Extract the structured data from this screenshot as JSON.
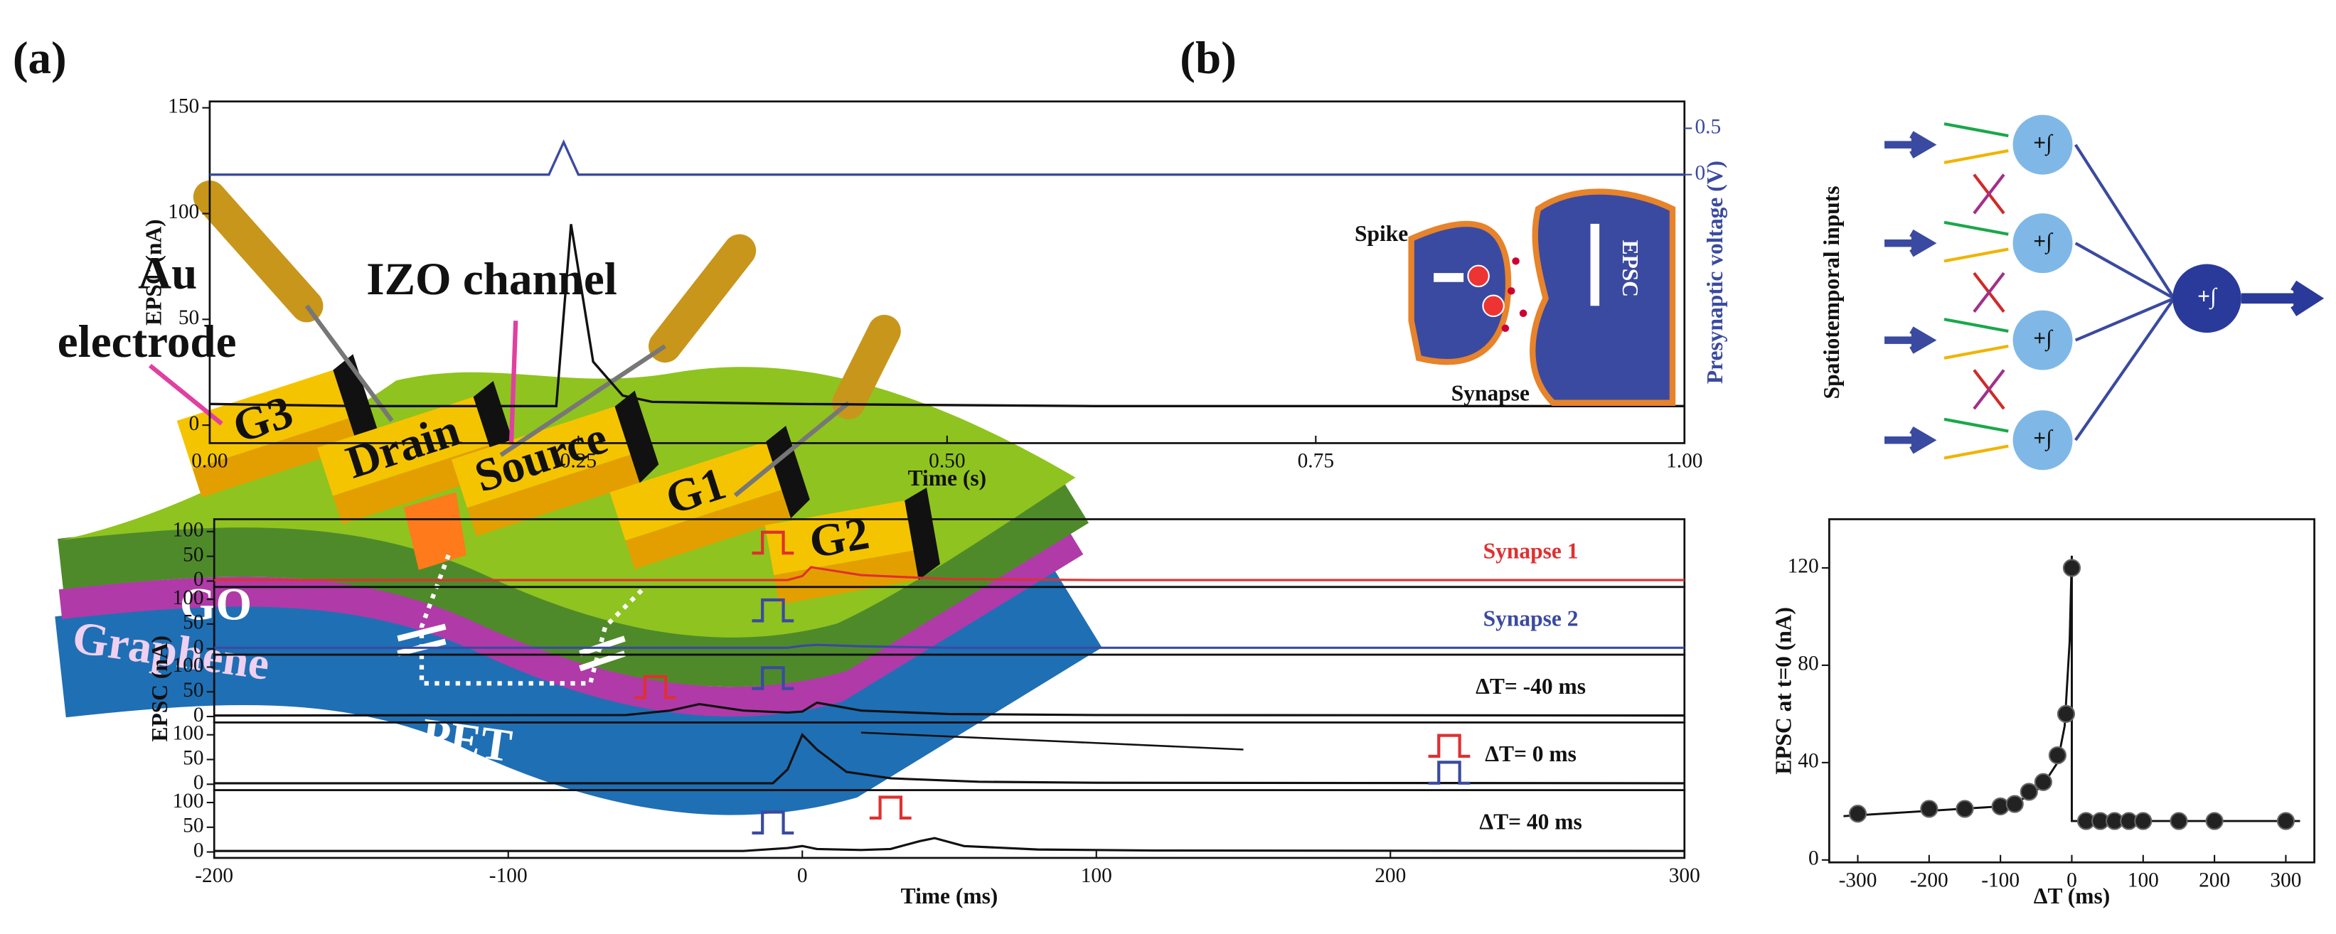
{
  "panel_a": {
    "label": "(a)",
    "labels": {
      "au": "Au",
      "electrode": "electrode",
      "izo": "IZO channel",
      "g3": "G3",
      "drain": "Drain",
      "source": "Source",
      "g1": "G1",
      "g2": "G2",
      "go": "GO",
      "graphene": "Graphene",
      "pet": "PET"
    }
  },
  "panel_b": {
    "label": "(b)",
    "network": {
      "inputs": "Spatiotemporal inputs",
      "neurons": [
        "+∫",
        "+∫",
        "+∫",
        "+∫"
      ],
      "output": "+∫"
    }
  },
  "chart_data": [
    {
      "type": "line",
      "xlabel": "Time (s)",
      "ylabel": "EPSC (nA)",
      "y2label": "Presynaptic voltage (V)",
      "xlim": [
        0,
        1
      ],
      "xticks": [
        {
          "value": 0,
          "label": "0.00"
        },
        {
          "value": 0.25,
          "label": "0.25"
        },
        {
          "value": 0.5,
          "label": "0.50"
        },
        {
          "value": 0.75,
          "label": "0.75"
        },
        {
          "value": 1,
          "label": "1.00"
        }
      ],
      "ylim": [
        -8.5,
        153
      ],
      "yticks": [
        0,
        50,
        100,
        150
      ],
      "y2lim": [
        -2.9,
        0.79
      ],
      "y2ticks": [
        0,
        0.5
      ],
      "annotations": [
        "Spike",
        "Synapse",
        "EPSC"
      ],
      "series": [
        {
          "color": "#111111",
          "x": [
            0,
            0.1,
            0.2,
            0.235,
            0.245,
            0.26,
            0.28,
            0.3,
            0.4,
            0.6,
            0.8,
            1.0
          ],
          "values": [
            10,
            9,
            9,
            9,
            95,
            30,
            14,
            11,
            10,
            9,
            9,
            9
          ]
        },
        {
          "color": "#3a4aa0",
          "axis": "y2",
          "x": [
            0,
            0.23,
            0.24,
            0.25,
            1.0
          ],
          "values": [
            0,
            0,
            0.35,
            0,
            0
          ]
        }
      ]
    },
    {
      "type": "strips",
      "xlabel": "Time (ms)",
      "ylabel": "EPSC (nA)",
      "xlim": [
        -200,
        300
      ],
      "xticks": [
        -200,
        -100,
        0,
        100,
        200,
        300
      ],
      "ylim": [
        -12,
        125
      ],
      "yticks": [
        0,
        50,
        100
      ],
      "series": [
        {
          "name": "Synapse 1",
          "color": "#e03030",
          "x": [
            -200,
            -5,
            0,
            3,
            20,
            50,
            100,
            300
          ],
          "values": [
            2,
            2,
            10,
            28,
            12,
            4,
            2,
            2
          ]
        },
        {
          "name": "Synapse 2",
          "color": "#3a4aa0",
          "x": [
            -200,
            -5,
            0,
            5,
            20,
            50,
            300
          ],
          "values": [
            2,
            2,
            6,
            8,
            5,
            2,
            2
          ]
        },
        {
          "name": "ΔT= -40 ms",
          "color": "#111111",
          "x": [
            -200,
            -60,
            -45,
            -35,
            -20,
            -5,
            0,
            5,
            20,
            50,
            100,
            300
          ],
          "values": [
            2,
            3,
            12,
            25,
            12,
            8,
            10,
            28,
            12,
            5,
            3,
            2
          ]
        },
        {
          "name": "ΔT= 0 ms",
          "color": "#111111",
          "x": [
            -200,
            -10,
            -5,
            0,
            5,
            15,
            30,
            60,
            100,
            300
          ],
          "values": [
            2,
            2,
            30,
            100,
            70,
            25,
            12,
            5,
            3,
            2
          ]
        },
        {
          "name": "ΔT= 40 ms",
          "color": "#111111",
          "x": [
            -200,
            -20,
            -5,
            0,
            5,
            20,
            30,
            40,
            45,
            55,
            80,
            120,
            300
          ],
          "values": [
            2,
            2,
            8,
            12,
            6,
            4,
            6,
            22,
            28,
            12,
            5,
            3,
            2
          ]
        }
      ]
    },
    {
      "type": "scatter",
      "xlabel": "ΔT (ms)",
      "ylabel": "EPSC at t=0 (nA)",
      "xlim": [
        -340,
        340
      ],
      "xticks": [
        -300,
        -200,
        -100,
        0,
        100,
        200,
        300
      ],
      "ylim": [
        -1,
        140
      ],
      "yticks": [
        0,
        40,
        80,
        120
      ],
      "series": [
        {
          "color": "#222222",
          "x": [
            -300,
            -200,
            -150,
            -100,
            -80,
            -60,
            -40,
            -20,
            -8,
            0,
            20,
            40,
            60,
            80,
            100,
            150,
            200,
            300
          ],
          "values": [
            19,
            21,
            21,
            22,
            23,
            28,
            32,
            43,
            60,
            120,
            16,
            16,
            16,
            16,
            16,
            16,
            16,
            16
          ]
        }
      ],
      "fit": {
        "color": "#111111",
        "x": [
          -320,
          -100,
          -60,
          -40,
          -20,
          -10,
          -3,
          0,
          0,
          320
        ],
        "values": [
          18,
          22,
          26,
          31,
          40,
          55,
          90,
          125,
          16,
          16
        ]
      }
    }
  ]
}
